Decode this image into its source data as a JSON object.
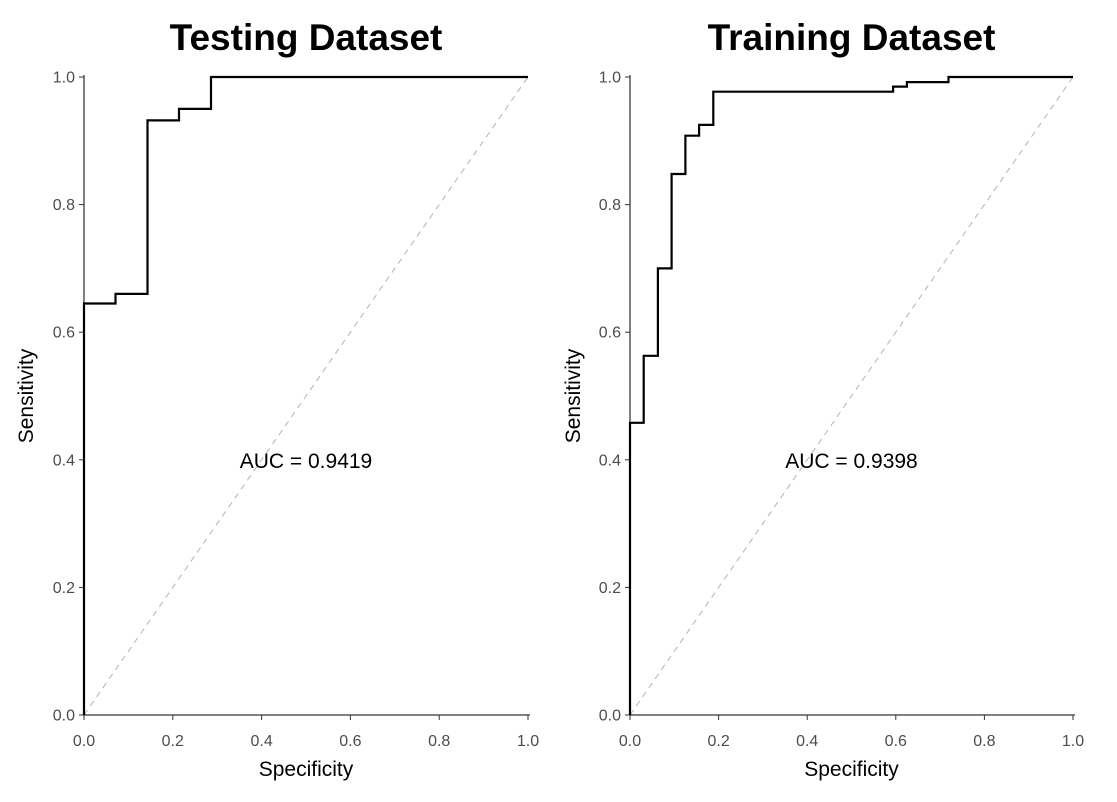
{
  "chart_data": [
    {
      "type": "line",
      "title": "Testing Dataset",
      "xlabel": "Specificity",
      "ylabel": "Sensitivity",
      "xlim": [
        0,
        1
      ],
      "ylim": [
        0,
        1
      ],
      "x_ticks": [
        "0.0",
        "0.2",
        "0.4",
        "0.6",
        "0.8",
        "1.0"
      ],
      "y_ticks": [
        "0.0",
        "0.2",
        "0.4",
        "0.6",
        "0.8",
        "1.0"
      ],
      "annotation": "AUC = 0.9419",
      "grid": false,
      "reference_line": "diagonal dashed",
      "series": [
        {
          "x": [
            0,
            0,
            0.071,
            0.071,
            0.143,
            0.143,
            0.214,
            0.214,
            0.286,
            0.286,
            1.0
          ],
          "y": [
            0,
            0.645,
            0.645,
            0.66,
            0.66,
            0.932,
            0.932,
            0.95,
            0.95,
            1.0,
            1.0
          ]
        }
      ]
    },
    {
      "type": "line",
      "title": "Training Dataset",
      "xlabel": "Specificity",
      "ylabel": "Sensitivity",
      "xlim": [
        0,
        1
      ],
      "ylim": [
        0,
        1
      ],
      "x_ticks": [
        "0.0",
        "0.2",
        "0.4",
        "0.6",
        "0.8",
        "1.0"
      ],
      "y_ticks": [
        "0.0",
        "0.2",
        "0.4",
        "0.6",
        "0.8",
        "1.0"
      ],
      "annotation": "AUC = 0.9398",
      "grid": false,
      "reference_line": "diagonal dashed",
      "series": [
        {
          "x": [
            0,
            0,
            0.031,
            0.031,
            0.063,
            0.063,
            0.094,
            0.094,
            0.125,
            0.125,
            0.156,
            0.156,
            0.188,
            0.188,
            0.594,
            0.594,
            0.625,
            0.625,
            0.719,
            0.719,
            1.0
          ],
          "y": [
            0,
            0.458,
            0.458,
            0.563,
            0.563,
            0.7,
            0.7,
            0.848,
            0.848,
            0.908,
            0.908,
            0.925,
            0.925,
            0.977,
            0.977,
            0.985,
            0.985,
            0.992,
            0.992,
            1.0,
            1.0
          ]
        }
      ]
    }
  ]
}
